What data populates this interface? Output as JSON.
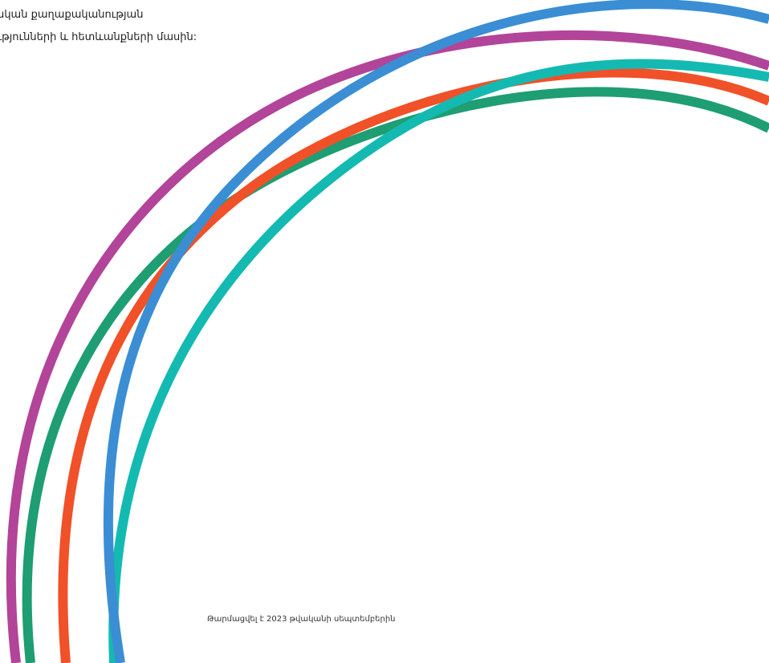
{
  "intro": {
    "line1": "տական քաղաքականության",
    "line2": "ցությունների և հետևանքների մասին:"
  },
  "footer": {
    "published": "Թարմացվել է 2023 թվականի սեպտեմբերին"
  },
  "colors": {
    "magenta": "#B2449A",
    "green": "#1E9E72",
    "orange": "#F05128",
    "teal": "#14BAB1",
    "blue": "#3B8ED3"
  }
}
